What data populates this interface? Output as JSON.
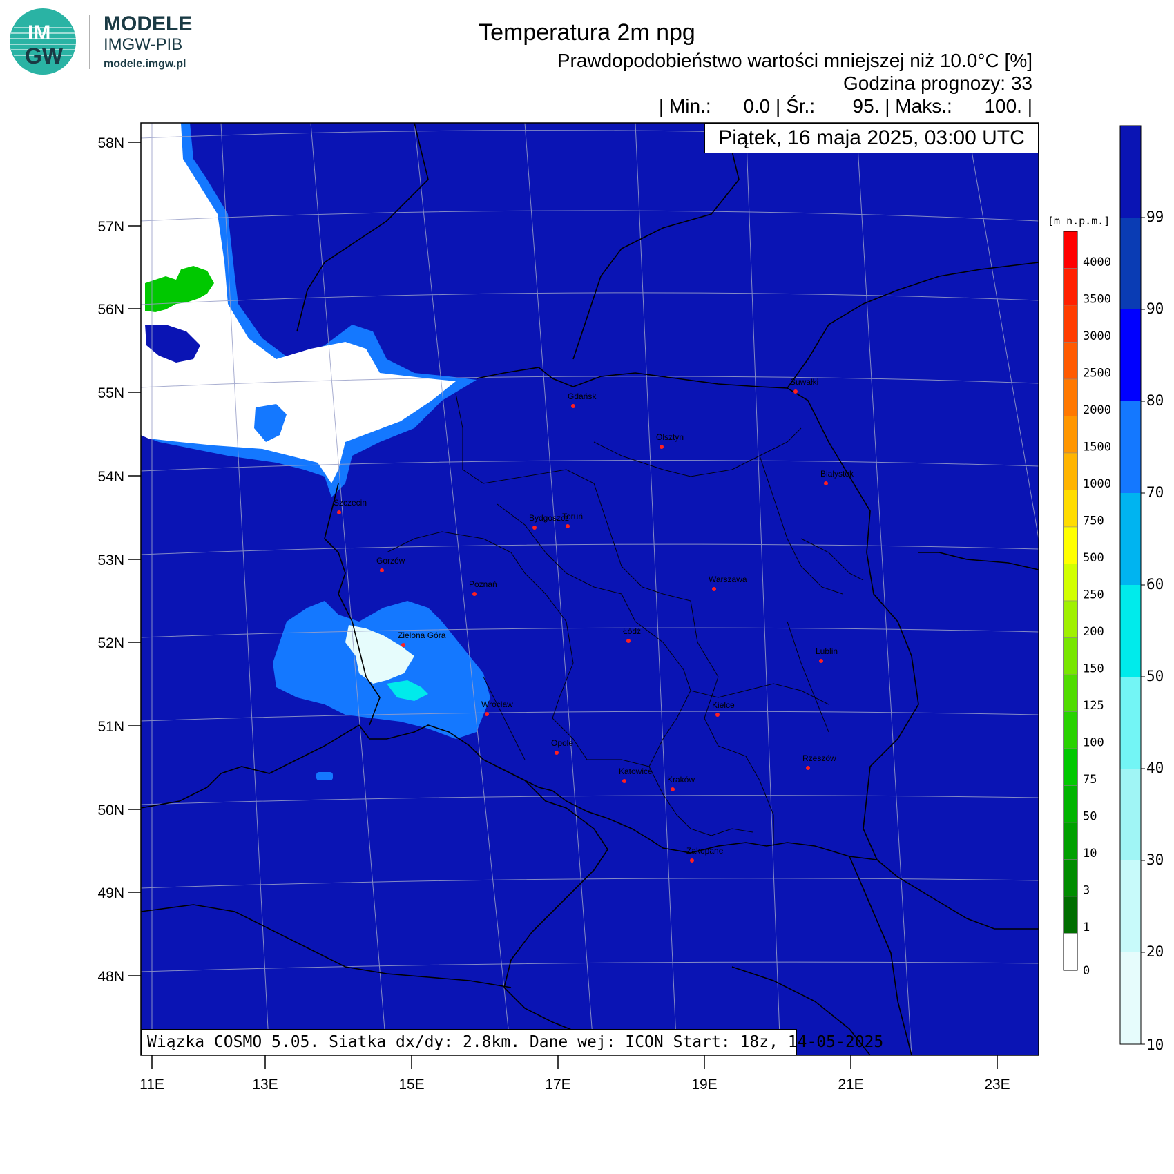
{
  "logo": {
    "mark_top": "IM",
    "mark_bottom": "GW",
    "name": "MODELE",
    "org": "IMGW-PIB",
    "url": "modele.imgw.pl"
  },
  "header": {
    "title": "Temperatura 2m npg",
    "subtitle": "Prawdopodobieństwo wartości mniejszej niż 10.0°C [%]",
    "forecast_hour": "Godzina prognozy: 33",
    "stats": "| Min.:      0.0 | Śr.:       95. | Maks.:      100. |"
  },
  "date_label": "Piątek, 16 maja 2025, 03:00 UTC",
  "model_info": "Wiązka COSMO 5.05. Siatka dx/dy: 2.8km. Dane wej: ICON Start: 18z, 14-05-2025",
  "map": {
    "lat_labels": [
      "58N",
      "57N",
      "56N",
      "55N",
      "54N",
      "53N",
      "52N",
      "51N",
      "50N",
      "49N",
      "48N"
    ],
    "lon_labels": [
      "11E",
      "13E",
      "15E",
      "17E",
      "19E",
      "21E",
      "23E"
    ],
    "cities": [
      {
        "name": "Gdańsk"
      },
      {
        "name": "Suwałki"
      },
      {
        "name": "Olsztyn"
      },
      {
        "name": "Białystok"
      },
      {
        "name": "Szczecin"
      },
      {
        "name": "Bydgoszcz"
      },
      {
        "name": "Toruń"
      },
      {
        "name": "Gorzów"
      },
      {
        "name": "Poznań"
      },
      {
        "name": "Warszawa"
      },
      {
        "name": "Łódź"
      },
      {
        "name": "Zielona Góra"
      },
      {
        "name": "Lublin"
      },
      {
        "name": "Wrocław"
      },
      {
        "name": "Kielce"
      },
      {
        "name": "Opole"
      },
      {
        "name": "Rzeszów"
      },
      {
        "name": "Katowice"
      },
      {
        "name": "Kraków"
      },
      {
        "name": "Zakopane"
      }
    ]
  },
  "elevation_legend": {
    "unit": "[m n.p.m.]",
    "labels": [
      "4000",
      "3500",
      "3000",
      "2500",
      "2000",
      "1500",
      "1000",
      "750",
      "500",
      "250",
      "200",
      "150",
      "125",
      "100",
      "75",
      "50",
      "10",
      "3",
      "1",
      "0"
    ],
    "colors": [
      "#ff0000",
      "#ff2000",
      "#ff3c00",
      "#ff5a00",
      "#ff7800",
      "#ff9600",
      "#ffb400",
      "#ffdc00",
      "#ffff00",
      "#d2ff00",
      "#a0f000",
      "#78e600",
      "#50dc00",
      "#28d200",
      "#00c800",
      "#00b400",
      "#00a000",
      "#008c00",
      "#006e00",
      "#ffffff"
    ]
  },
  "probability_legend": {
    "labels": [
      "99",
      "90",
      "80",
      "70",
      "60",
      "50",
      "40",
      "30",
      "20",
      "10"
    ],
    "colors": [
      "#0a14b4",
      "#0a3cb4",
      "#0000ff",
      "#1478ff",
      "#00b4f0",
      "#00ebeb",
      "#73f5f5",
      "#a0f5f5",
      "#c8fafa",
      "#e6fcfc"
    ]
  },
  "colors": {
    "field": "#0a14b4",
    "land_low": "#00c800"
  }
}
